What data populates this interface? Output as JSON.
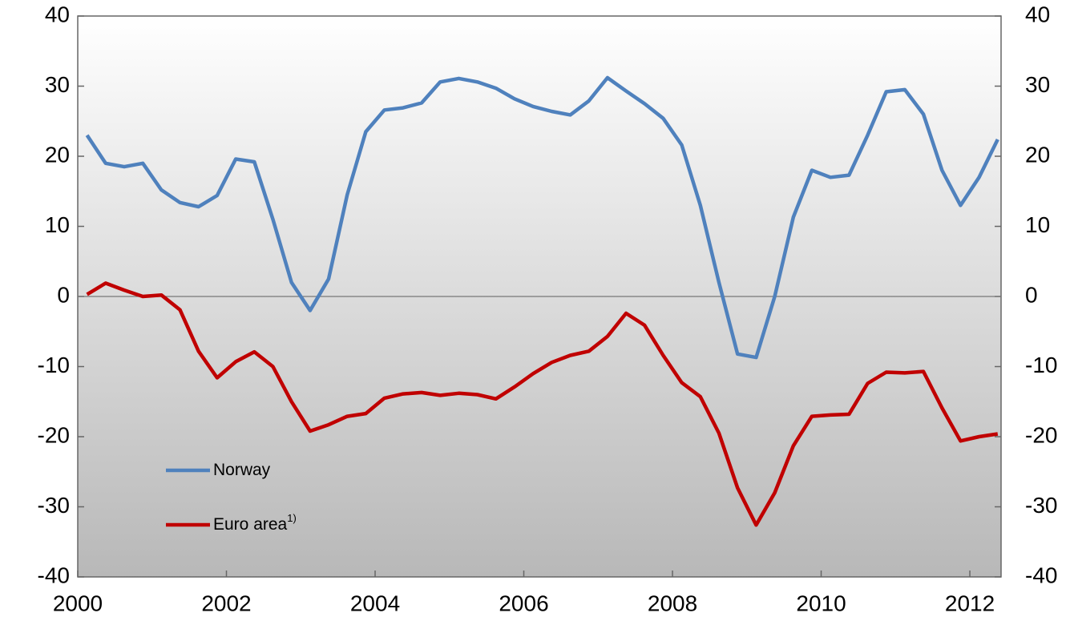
{
  "chart_data": {
    "type": "line",
    "x": [
      2000.125,
      2000.375,
      2000.625,
      2000.875,
      2001.125,
      2001.375,
      2001.625,
      2001.875,
      2002.125,
      2002.375,
      2002.625,
      2002.875,
      2003.125,
      2003.375,
      2003.625,
      2003.875,
      2004.125,
      2004.375,
      2004.625,
      2004.875,
      2005.125,
      2005.375,
      2005.625,
      2005.875,
      2006.125,
      2006.375,
      2006.625,
      2006.875,
      2007.125,
      2007.375,
      2007.625,
      2007.875,
      2008.125,
      2008.375,
      2008.625,
      2008.875,
      2009.125,
      2009.375,
      2009.625,
      2009.875,
      2010.125,
      2010.375,
      2010.625,
      2010.875,
      2011.125,
      2011.375,
      2011.625,
      2011.875,
      2012.125,
      2012.375
    ],
    "series": [
      {
        "name": "Norway",
        "color": "#4f81bd",
        "values": [
          23,
          19,
          18.5,
          19,
          15.2,
          13.4,
          12.8,
          14.4,
          19.6,
          19.2,
          11,
          2,
          -2,
          2.5,
          14.5,
          23.5,
          26.6,
          26.9,
          27.6,
          30.6,
          31.1,
          30.6,
          29.7,
          28.2,
          27.1,
          26.4,
          25.9,
          27.9,
          31.2,
          29.3,
          27.5,
          25.4,
          21.6,
          13,
          2,
          -8.2,
          -8.7,
          0,
          11.3,
          18,
          17,
          17.3,
          23,
          29.2,
          29.5,
          26,
          18,
          13,
          17,
          22.4
        ]
      },
      {
        "name": "Euro area",
        "note": "1)",
        "color": "#c00000",
        "values": [
          0.3,
          1.9,
          0.9,
          0,
          0.2,
          -1.9,
          -7.8,
          -11.6,
          -9.3,
          -7.9,
          -10,
          -15,
          -19.2,
          -18.3,
          -17.1,
          -16.7,
          -14.5,
          -13.9,
          -13.7,
          -14.1,
          -13.8,
          -14,
          -14.6,
          -12.9,
          -11,
          -9.4,
          -8.4,
          -7.8,
          -5.7,
          -2.4,
          -4.1,
          -8.4,
          -12.3,
          -14.3,
          -19.5,
          -27.3,
          -32.6,
          -28,
          -21.3,
          -17.1,
          -16.9,
          -16.8,
          -12.4,
          -10.8,
          -10.9,
          -10.7,
          -15.9,
          -20.6,
          -20,
          -19.6
        ]
      }
    ],
    "xlim": [
      2000,
      2012.42
    ],
    "xticks": [
      2000,
      2002,
      2004,
      2006,
      2008,
      2010,
      2012
    ],
    "ylim": [
      -40,
      40
    ],
    "yticks": [
      -40,
      -30,
      -20,
      -10,
      0,
      10,
      20,
      30,
      40
    ],
    "y2lim": [
      -40,
      40
    ],
    "y2ticks": [
      -40,
      -30,
      -20,
      -10,
      0,
      10,
      20,
      30,
      40
    ]
  }
}
